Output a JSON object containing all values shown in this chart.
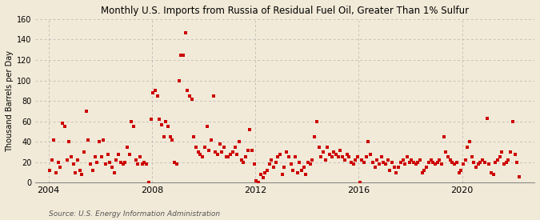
{
  "title": "Monthly U.S. Imports from Russia of Residual Fuel Oil, Greater Than 1% Sulfur",
  "ylabel": "Thousand Barrels per Day",
  "source": "Source: U.S. Energy Information Administration",
  "background_color": "#f2ead8",
  "marker_color": "#cc0000",
  "ylim": [
    0,
    160
  ],
  "yticks": [
    0,
    20,
    40,
    60,
    80,
    100,
    120,
    140,
    160
  ],
  "xlim": [
    2003.5,
    2022.8
  ],
  "xticks_years": [
    2004,
    2008,
    2012,
    2016,
    2020
  ],
  "data": {
    "2004-01": 12,
    "2004-02": 22,
    "2004-03": 42,
    "2004-04": 10,
    "2004-05": 20,
    "2004-06": 15,
    "2004-07": 58,
    "2004-08": 55,
    "2004-09": 22,
    "2004-10": 40,
    "2004-11": 25,
    "2004-12": 18,
    "2005-01": 10,
    "2005-02": 22,
    "2005-03": 12,
    "2005-04": 8,
    "2005-05": 30,
    "2005-06": 70,
    "2005-07": 42,
    "2005-08": 18,
    "2005-09": 12,
    "2005-10": 25,
    "2005-11": 20,
    "2005-12": 40,
    "2006-01": 25,
    "2006-02": 42,
    "2006-03": 18,
    "2006-04": 28,
    "2006-05": 20,
    "2006-06": 15,
    "2006-07": 10,
    "2006-08": 22,
    "2006-09": 28,
    "2006-10": 20,
    "2006-11": 18,
    "2006-12": 20,
    "2007-01": 35,
    "2007-02": 28,
    "2007-03": 60,
    "2007-04": 55,
    "2007-05": 22,
    "2007-06": 18,
    "2007-07": 25,
    "2007-08": 18,
    "2007-09": 20,
    "2007-10": 18,
    "2007-11": 0,
    "2007-12": 62,
    "2008-01": 88,
    "2008-02": 90,
    "2008-03": 85,
    "2008-04": 62,
    "2008-05": 57,
    "2008-06": 45,
    "2008-07": 60,
    "2008-08": 55,
    "2008-09": 45,
    "2008-10": 42,
    "2008-11": 20,
    "2008-12": 18,
    "2009-01": 100,
    "2009-02": 125,
    "2009-03": 125,
    "2009-04": 147,
    "2009-05": 90,
    "2009-06": 85,
    "2009-07": 82,
    "2009-08": 45,
    "2009-09": 35,
    "2009-10": 30,
    "2009-11": 28,
    "2009-12": 25,
    "2010-01": 35,
    "2010-02": 55,
    "2010-03": 32,
    "2010-04": 42,
    "2010-05": 85,
    "2010-06": 30,
    "2010-07": 28,
    "2010-08": 38,
    "2010-09": 30,
    "2010-10": 35,
    "2010-11": 25,
    "2010-12": 25,
    "2011-01": 28,
    "2011-02": 30,
    "2011-03": 35,
    "2011-04": 28,
    "2011-05": 40,
    "2011-06": 22,
    "2011-07": 20,
    "2011-08": 25,
    "2011-09": 32,
    "2011-10": 52,
    "2011-11": 32,
    "2011-12": 18,
    "2012-01": 2,
    "2012-02": 0,
    "2012-03": 8,
    "2012-04": 5,
    "2012-05": 10,
    "2012-06": 12,
    "2012-07": 18,
    "2012-08": 22,
    "2012-09": 15,
    "2012-10": 20,
    "2012-11": 25,
    "2012-12": 28,
    "2013-01": 8,
    "2013-02": 15,
    "2013-03": 30,
    "2013-04": 25,
    "2013-05": 18,
    "2013-06": 12,
    "2013-07": 25,
    "2013-08": 10,
    "2013-09": 20,
    "2013-10": 12,
    "2013-11": 15,
    "2013-12": 8,
    "2014-01": 20,
    "2014-02": 18,
    "2014-03": 22,
    "2014-04": 45,
    "2014-05": 60,
    "2014-06": 35,
    "2014-07": 25,
    "2014-08": 30,
    "2014-09": 22,
    "2014-10": 35,
    "2014-11": 28,
    "2014-12": 25,
    "2015-01": 30,
    "2015-02": 28,
    "2015-03": 25,
    "2015-04": 32,
    "2015-05": 25,
    "2015-06": 22,
    "2015-07": 28,
    "2015-08": 25,
    "2015-09": 20,
    "2015-10": 18,
    "2015-11": 22,
    "2015-12": 25,
    "2016-01": 0,
    "2016-02": 22,
    "2016-03": 20,
    "2016-04": 25,
    "2016-05": 40,
    "2016-06": 28,
    "2016-07": 20,
    "2016-08": 15,
    "2016-09": 22,
    "2016-10": 18,
    "2016-11": 25,
    "2016-12": 20,
    "2017-01": 18,
    "2017-02": 22,
    "2017-03": 12,
    "2017-04": 20,
    "2017-05": 15,
    "2017-06": 10,
    "2017-07": 15,
    "2017-08": 20,
    "2017-09": 22,
    "2017-10": 18,
    "2017-11": 25,
    "2017-12": 20,
    "2018-01": 22,
    "2018-02": 20,
    "2018-03": 18,
    "2018-04": 20,
    "2018-05": 22,
    "2018-06": 10,
    "2018-07": 12,
    "2018-08": 15,
    "2018-09": 20,
    "2018-10": 22,
    "2018-11": 20,
    "2018-12": 18,
    "2019-01": 20,
    "2019-02": 22,
    "2019-03": 18,
    "2019-04": 45,
    "2019-05": 30,
    "2019-06": 25,
    "2019-07": 22,
    "2019-08": 20,
    "2019-09": 18,
    "2019-10": 20,
    "2019-11": 10,
    "2019-12": 12,
    "2020-01": 18,
    "2020-02": 22,
    "2020-03": 35,
    "2020-04": 40,
    "2020-05": 25,
    "2020-06": 20,
    "2020-07": 15,
    "2020-08": 18,
    "2020-09": 20,
    "2020-10": 22,
    "2020-11": 20,
    "2020-12": 63,
    "2021-01": 18,
    "2021-02": 10,
    "2021-03": 8,
    "2021-04": 20,
    "2021-05": 22,
    "2021-06": 25,
    "2021-07": 30,
    "2021-08": 18,
    "2021-09": 20,
    "2021-10": 22,
    "2021-11": 30,
    "2021-12": 60,
    "2022-01": 28,
    "2022-02": 20,
    "2022-03": 6
  }
}
